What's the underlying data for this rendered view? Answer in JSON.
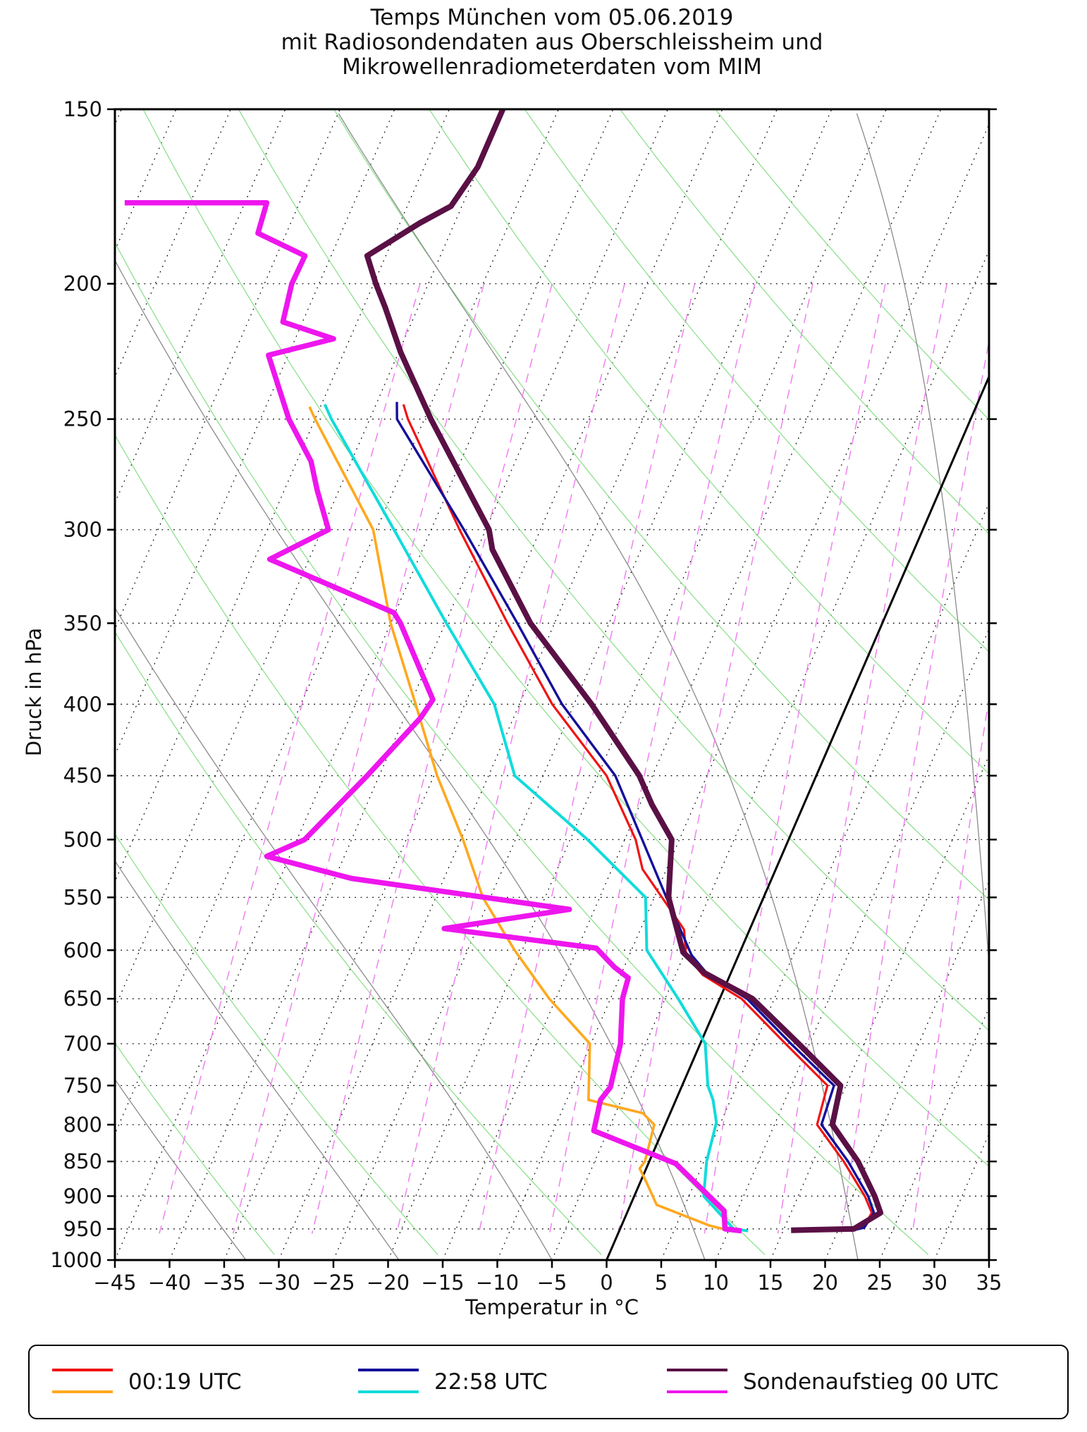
{
  "title": {
    "line1": "Temps München vom 05.06.2019",
    "line2": "mit Radiosondendaten aus Oberschleissheim und",
    "line3": "Mikrowellenradiometerdaten vom MIM"
  },
  "axes": {
    "x_label": "Temperatur in °C",
    "y_label": "Druck in hPa",
    "x_ticks": [
      "−45",
      "−40",
      "−35",
      "−30",
      "−25",
      "−20",
      "−15",
      "−10",
      "−5",
      "0",
      "5",
      "10",
      "15",
      "20",
      "25",
      "30",
      "35"
    ],
    "x_tick_values": [
      -45,
      -40,
      -35,
      -30,
      -25,
      -20,
      -15,
      -10,
      -5,
      0,
      5,
      10,
      15,
      20,
      25,
      30,
      35
    ],
    "y_ticks": [
      "150",
      "200",
      "250",
      "300",
      "350",
      "400",
      "450",
      "500",
      "550",
      "600",
      "650",
      "700",
      "750",
      "800",
      "850",
      "900",
      "950",
      "1000"
    ],
    "y_tick_values": [
      150,
      200,
      250,
      300,
      350,
      400,
      450,
      500,
      550,
      600,
      650,
      700,
      750,
      800,
      850,
      900,
      950,
      1000
    ]
  },
  "legend": {
    "entries": [
      {
        "label": "00:19 UTC",
        "colors": [
          "#f01413",
          "#ffa81e"
        ]
      },
      {
        "label": "22:58 UTC",
        "colors": [
          "#150f9b",
          "#11dbdb"
        ]
      },
      {
        "label": "Sondenaufstieg 00 UTC",
        "colors": [
          "#5a1045",
          "#ee16ee"
        ]
      }
    ]
  },
  "chart_data": {
    "type": "line",
    "diagram": "skew-T log-p",
    "x_range_c": [
      -45,
      35
    ],
    "p_range_hpa": [
      150,
      1000
    ],
    "skew_shift_c_over_height": 45.6,
    "background": {
      "isotherm_step_c": 5,
      "isotherm_color": "#111111",
      "zero_isotherm_color": "#000000",
      "pressure_grid_hpa": [
        200,
        250,
        300,
        350,
        400,
        450,
        500,
        550,
        600,
        650,
        700,
        750,
        800,
        850,
        900,
        950
      ],
      "dry_adiabats_theta_c": [
        -45,
        -30,
        -15,
        0,
        15,
        30,
        45,
        60,
        75,
        90,
        105,
        120,
        135
      ],
      "dry_adiabat_color": "#8fe08f",
      "moist_adiabats_start_c": [
        -47,
        -33,
        -19,
        -5,
        9,
        23,
        37,
        51
      ],
      "moist_adiabat_color": "#8a8a8a",
      "mixing_ratio_g_kg": [
        0.1,
        0.2,
        0.4,
        0.8,
        1.5,
        2.5,
        4,
        7,
        11,
        16,
        24
      ],
      "mixing_ratio_p_top_hpa": 200,
      "mixing_ratio_color": "#ee82ee"
    },
    "series": [
      {
        "name": "00:19 UTC Taupunkt",
        "kind": "dewpoint",
        "color": "#ffa81e",
        "width": 3.6,
        "points": [
          [
            245,
            -61
          ],
          [
            250,
            -60
          ],
          [
            300,
            -50.3
          ],
          [
            350,
            -45
          ],
          [
            400,
            -39.5
          ],
          [
            450,
            -34.7
          ],
          [
            500,
            -29.8
          ],
          [
            550,
            -25.7
          ],
          [
            600,
            -20.7
          ],
          [
            650,
            -15.6
          ],
          [
            700,
            -10.1
          ],
          [
            768,
            -8
          ],
          [
            785,
            -2.5
          ],
          [
            800,
            -1
          ],
          [
            850,
            -0.4
          ],
          [
            860,
            -0.6
          ],
          [
            875,
            0.3
          ],
          [
            913,
            2.4
          ],
          [
            945,
            8.1
          ],
          [
            950,
            9.4
          ]
        ]
      },
      {
        "name": "00:19 UTC Temperatur",
        "kind": "temperature",
        "color": "#f01413",
        "width": 3.2,
        "points": [
          [
            244,
            -52.5
          ],
          [
            250,
            -51.5
          ],
          [
            300,
            -42.4
          ],
          [
            350,
            -34.3
          ],
          [
            400,
            -27
          ],
          [
            450,
            -19.2
          ],
          [
            500,
            -14
          ],
          [
            525,
            -12.2
          ],
          [
            550,
            -9.3
          ],
          [
            580,
            -6
          ],
          [
            605,
            -4.8
          ],
          [
            625,
            -2.5
          ],
          [
            650,
            2
          ],
          [
            700,
            7.8
          ],
          [
            750,
            13.3
          ],
          [
            800,
            13.9
          ],
          [
            850,
            17.8
          ],
          [
            900,
            21.1
          ],
          [
            925,
            22.4
          ],
          [
            948,
            22.2
          ],
          [
            953,
            21
          ]
        ]
      },
      {
        "name": "22:58 UTC Taupunkt",
        "kind": "dewpoint",
        "color": "#11dbdb",
        "width": 4,
        "points": [
          [
            244,
            -59.7
          ],
          [
            250,
            -58.5
          ],
          [
            300,
            -48.4
          ],
          [
            350,
            -39.9
          ],
          [
            400,
            -32.3
          ],
          [
            450,
            -27.6
          ],
          [
            500,
            -18.4
          ],
          [
            550,
            -10.8
          ],
          [
            600,
            -8.6
          ],
          [
            650,
            -3.8
          ],
          [
            700,
            0.45
          ],
          [
            750,
            2.35
          ],
          [
            768,
            3.4
          ],
          [
            797,
            4.6
          ],
          [
            850,
            5.25
          ],
          [
            900,
            6.35
          ],
          [
            950,
            10.4
          ],
          [
            953,
            11.8
          ]
        ]
      },
      {
        "name": "22:58 UTC Temperatur",
        "kind": "temperature",
        "color": "#150f9b",
        "width": 3.4,
        "points": [
          [
            243,
            -53.2
          ],
          [
            250,
            -52.5
          ],
          [
            300,
            -42
          ],
          [
            350,
            -33.4
          ],
          [
            400,
            -26.1
          ],
          [
            450,
            -18.4
          ],
          [
            500,
            -13.4
          ],
          [
            550,
            -8.9
          ],
          [
            605,
            -4.3
          ],
          [
            625,
            -2
          ],
          [
            650,
            2.5
          ],
          [
            700,
            8.3
          ],
          [
            750,
            13.9
          ],
          [
            800,
            14.3
          ],
          [
            850,
            18.2
          ],
          [
            900,
            21.4
          ],
          [
            925,
            22.6
          ],
          [
            948,
            22.3
          ],
          [
            953,
            21.2
          ]
        ]
      },
      {
        "name": "Sondenaufstieg 00 UTC Taupunkt",
        "kind": "dewpoint",
        "color": "#ee16ee",
        "width": 7.5,
        "points": [
          [
            175,
            -86
          ],
          [
            175,
            -73
          ],
          [
            184,
            -72.6
          ],
          [
            191,
            -67.4
          ],
          [
            200,
            -67.5
          ],
          [
            213,
            -66.8
          ],
          [
            219,
            -61.5
          ],
          [
            225,
            -66.8
          ],
          [
            250,
            -62.4
          ],
          [
            268,
            -58.7
          ],
          [
            281,
            -57
          ],
          [
            300,
            -54.4
          ],
          [
            315,
            -58.6
          ],
          [
            344,
            -45.1
          ],
          [
            350,
            -44.1
          ],
          [
            397,
            -38.1
          ],
          [
            409,
            -38.5
          ],
          [
            450,
            -41.1
          ],
          [
            500,
            -44.3
          ],
          [
            514,
            -47.1
          ],
          [
            533,
            -38.5
          ],
          [
            561,
            -17.3
          ],
          [
            579,
            -28
          ],
          [
            598,
            -13.3
          ],
          [
            617,
            -10.9
          ],
          [
            628,
            -9.2
          ],
          [
            650,
            -8.9
          ],
          [
            700,
            -7.3
          ],
          [
            752,
            -6.5
          ],
          [
            768,
            -6.9
          ],
          [
            808,
            -6.3
          ],
          [
            853,
            2.5
          ],
          [
            922,
            8.8
          ],
          [
            950,
            9.6
          ],
          [
            953,
            11.2
          ]
        ]
      },
      {
        "name": "Sondenaufstieg 00 UTC Temperatur",
        "kind": "temperature",
        "color": "#5a1045",
        "width": 8,
        "points": [
          [
            150,
            -55.1
          ],
          [
            165,
            -55.1
          ],
          [
            176,
            -56
          ],
          [
            181,
            -58.2
          ],
          [
            191,
            -61.7
          ],
          [
            200,
            -59.8
          ],
          [
            208,
            -58
          ],
          [
            224,
            -54.8
          ],
          [
            250,
            -49.4
          ],
          [
            300,
            -39.7
          ],
          [
            310,
            -38.6
          ],
          [
            350,
            -32.2
          ],
          [
            400,
            -23.4
          ],
          [
            450,
            -16.2
          ],
          [
            472,
            -13.9
          ],
          [
            500,
            -10.7
          ],
          [
            550,
            -8.7
          ],
          [
            602,
            -5.2
          ],
          [
            623,
            -2.4
          ],
          [
            650,
            3
          ],
          [
            700,
            9
          ],
          [
            750,
            14.5
          ],
          [
            800,
            15.3
          ],
          [
            850,
            19.1
          ],
          [
            900,
            22
          ],
          [
            925,
            23.2
          ],
          [
            950,
            21.4
          ],
          [
            952,
            15.7
          ]
        ]
      }
    ]
  }
}
